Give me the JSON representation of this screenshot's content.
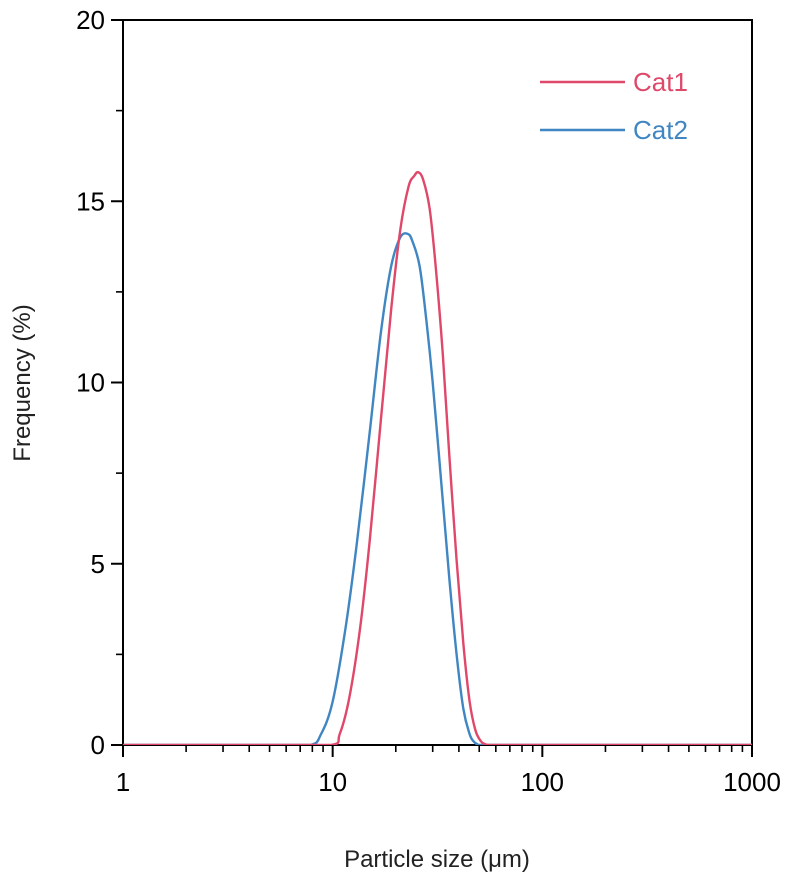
{
  "chart_data": {
    "type": "line",
    "title": "",
    "xlabel": "Particle size (μm)",
    "ylabel": "Frequency (%)",
    "xscale": "log",
    "xlim": [
      1,
      1000
    ],
    "ylim": [
      0,
      20
    ],
    "xticks": [
      1,
      10,
      100,
      1000
    ],
    "xtick_labels": [
      "1",
      "10",
      "100",
      "1000"
    ],
    "yticks": [
      0,
      5,
      10,
      15,
      20
    ],
    "ytick_labels": [
      "0",
      "5",
      "10",
      "15",
      "20"
    ],
    "grid": false,
    "legend_position": "top-right",
    "series": [
      {
        "name": "Cat1",
        "color": "#E0486A",
        "x": [
          1,
          5,
          9.8,
          10.8,
          12,
          13.5,
          15,
          17,
          19,
          21,
          23,
          24.5,
          25.6,
          27,
          29,
          31,
          33.5,
          36,
          39,
          42,
          45,
          48,
          51,
          53,
          55,
          60,
          100,
          1000
        ],
        "y": [
          0,
          0,
          0,
          0.3,
          1.3,
          3.2,
          5.6,
          9.0,
          12.0,
          14.2,
          15.4,
          15.7,
          15.8,
          15.6,
          14.8,
          13.2,
          10.8,
          8.0,
          5.1,
          2.8,
          1.2,
          0.4,
          0.1,
          0.03,
          0,
          0,
          0,
          0
        ]
      },
      {
        "name": "Cat2",
        "color": "#3F86C2",
        "x": [
          1,
          5,
          7.8,
          8.8,
          10,
          11.5,
          13,
          15,
          17,
          19,
          21,
          22.8,
          24,
          26,
          28,
          30,
          33,
          36,
          39,
          42,
          45,
          47,
          49,
          52,
          100,
          1000
        ],
        "y": [
          0,
          0,
          0,
          0.3,
          1.2,
          3.2,
          5.5,
          8.6,
          11.4,
          13.2,
          14.0,
          14.1,
          13.9,
          13.2,
          11.7,
          10.0,
          7.2,
          4.6,
          2.5,
          1.0,
          0.3,
          0.1,
          0.02,
          0,
          0,
          0
        ]
      }
    ]
  }
}
